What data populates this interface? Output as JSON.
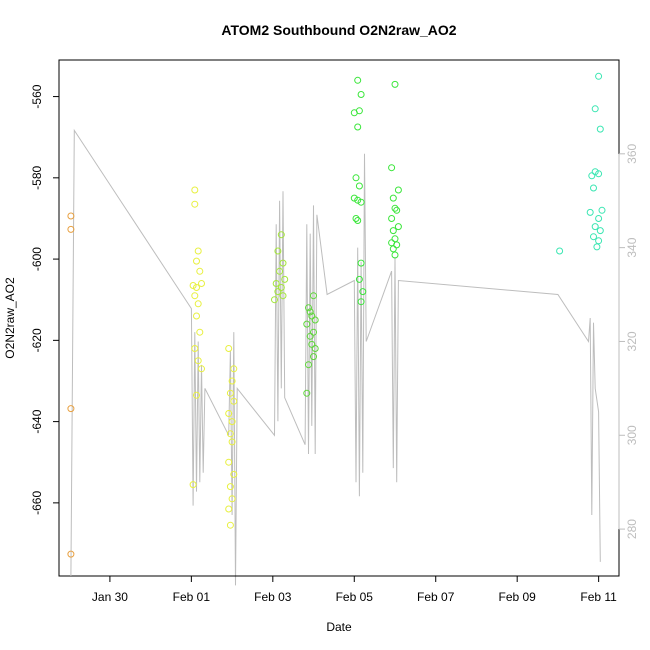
{
  "chart_data": {
    "type": "scatter",
    "title": "ATOM2 Southbound O2N2raw_AO2",
    "xlabel": "Date",
    "ylabel": "O2N2raw_AO2",
    "x_axis": {
      "kind": "date",
      "range": [
        "2016-01-28T18:00",
        "2016-02-11T12:00"
      ],
      "ticks": [
        "2016-01-30",
        "2016-02-01",
        "2016-02-03",
        "2016-02-05",
        "2016-02-07",
        "2016-02-09",
        "2016-02-11"
      ],
      "tick_labels": [
        "Jan 30",
        "Feb 01",
        "Feb 03",
        "Feb 05",
        "Feb 07",
        "Feb 09",
        "Feb 11"
      ]
    },
    "y_axis": {
      "range": [
        -678,
        -551
      ],
      "ticks": [
        -660,
        -640,
        -620,
        -600,
        -580,
        -560
      ],
      "tick_labels": [
        "-660",
        "-640",
        "-620",
        "-600",
        "-580",
        "-560"
      ]
    },
    "y2_axis": {
      "range": [
        270,
        380
      ],
      "ticks": [
        280,
        300,
        320,
        340,
        360
      ],
      "tick_labels": [
        "280",
        "300",
        "320",
        "340",
        "360"
      ],
      "color": "#bdbdbd"
    },
    "grid": false,
    "series": [
      {
        "kind": "points",
        "color": "#e8a040",
        "points": [
          [
            "2016-01-29T01:00",
            -589.4
          ],
          [
            "2016-01-29T01:00",
            -592.7
          ],
          [
            "2016-01-29T01:00",
            -636.8
          ],
          [
            "2016-01-29T01:00",
            -672.6
          ]
        ]
      },
      {
        "kind": "points",
        "color": "#e8f040",
        "points": [
          [
            "2016-02-01T02:00",
            -583.0
          ],
          [
            "2016-02-01T02:00",
            -586.5
          ],
          [
            "2016-02-01T04:00",
            -598.0
          ],
          [
            "2016-02-01T03:00",
            -600.5
          ],
          [
            "2016-02-01T05:00",
            -603.0
          ],
          [
            "2016-02-01T01:00",
            -606.5
          ],
          [
            "2016-02-01T03:00",
            -607.0
          ],
          [
            "2016-02-01T06:00",
            -606.0
          ],
          [
            "2016-02-01T02:00",
            -609.0
          ],
          [
            "2016-02-01T04:00",
            -611.0
          ],
          [
            "2016-02-01T03:00",
            -614.0
          ],
          [
            "2016-02-01T05:00",
            -618.0
          ],
          [
            "2016-02-01T02:00",
            -622.0
          ],
          [
            "2016-02-01T04:00",
            -625.0
          ],
          [
            "2016-02-01T06:00",
            -627.0
          ],
          [
            "2016-02-01T03:00",
            -633.5
          ],
          [
            "2016-02-01T01:00",
            -655.5
          ],
          [
            "2016-02-01T22:00",
            -622.0
          ],
          [
            "2016-02-02T01:00",
            -627.0
          ],
          [
            "2016-02-02T00:00",
            -630.0
          ],
          [
            "2016-02-01T23:00",
            -633.0
          ],
          [
            "2016-02-02T01:00",
            -635.0
          ],
          [
            "2016-02-01T22:00",
            -638.0
          ],
          [
            "2016-02-02T00:00",
            -640.0
          ],
          [
            "2016-02-01T23:00",
            -643.0
          ],
          [
            "2016-02-02T00:00",
            -645.0
          ],
          [
            "2016-02-01T22:00",
            -650.0
          ],
          [
            "2016-02-02T01:00",
            -653.0
          ],
          [
            "2016-02-01T23:00",
            -656.0
          ],
          [
            "2016-02-02T00:00",
            -659.0
          ],
          [
            "2016-02-01T22:00",
            -661.5
          ],
          [
            "2016-02-01T23:00",
            -665.5
          ]
        ]
      },
      {
        "kind": "points",
        "color": "#a4e63a",
        "points": [
          [
            "2016-02-03T05:00",
            -594.0
          ],
          [
            "2016-02-03T03:00",
            -598.0
          ],
          [
            "2016-02-03T06:00",
            -601.0
          ],
          [
            "2016-02-03T04:00",
            -603.0
          ],
          [
            "2016-02-03T07:00",
            -605.0
          ],
          [
            "2016-02-03T02:00",
            -606.0
          ],
          [
            "2016-02-03T05:00",
            -607.0
          ],
          [
            "2016-02-03T03:00",
            -608.0
          ],
          [
            "2016-02-03T06:00",
            -609.0
          ],
          [
            "2016-02-03T01:00",
            -610.0
          ]
        ]
      },
      {
        "kind": "points",
        "color": "#5ed63a",
        "points": [
          [
            "2016-02-03T21:00",
            -612.0
          ],
          [
            "2016-02-04T00:00",
            -609.0
          ],
          [
            "2016-02-03T22:00",
            -613.0
          ],
          [
            "2016-02-03T23:00",
            -614.0
          ],
          [
            "2016-02-04T01:00",
            -615.0
          ],
          [
            "2016-02-03T20:00",
            -616.0
          ],
          [
            "2016-02-04T00:00",
            -618.0
          ],
          [
            "2016-02-03T22:00",
            -619.0
          ],
          [
            "2016-02-03T23:00",
            -621.0
          ],
          [
            "2016-02-04T01:00",
            -622.0
          ],
          [
            "2016-02-04T00:00",
            -624.0
          ],
          [
            "2016-02-03T21:00",
            -626.0
          ],
          [
            "2016-02-03T20:00",
            -633.0
          ]
        ]
      },
      {
        "kind": "points",
        "color": "#3ae63a",
        "points": [
          [
            "2016-02-05T02:00",
            -556.0
          ],
          [
            "2016-02-05T04:00",
            -559.5
          ],
          [
            "2016-02-05T00:00",
            -564.0
          ],
          [
            "2016-02-05T03:00",
            -563.5
          ],
          [
            "2016-02-05T02:00",
            -567.5
          ],
          [
            "2016-02-05T01:00",
            -580.0
          ],
          [
            "2016-02-05T03:00",
            -582.0
          ],
          [
            "2016-02-05T00:00",
            -585.0
          ],
          [
            "2016-02-05T02:00",
            -585.5
          ],
          [
            "2016-02-05T04:00",
            -586.0
          ],
          [
            "2016-02-05T01:00",
            -590.0
          ],
          [
            "2016-02-05T02:00",
            -590.5
          ],
          [
            "2016-02-05T04:00",
            -601.0
          ],
          [
            "2016-02-05T03:00",
            -605.0
          ],
          [
            "2016-02-05T05:00",
            -608.0
          ],
          [
            "2016-02-05T04:00",
            -610.5
          ],
          [
            "2016-02-06T00:00",
            -557.0
          ],
          [
            "2016-02-05T22:00",
            -577.5
          ],
          [
            "2016-02-06T02:00",
            -583.0
          ],
          [
            "2016-02-05T23:00",
            -585.0
          ],
          [
            "2016-02-06T00:00",
            -587.5
          ],
          [
            "2016-02-06T01:00",
            -588.0
          ],
          [
            "2016-02-05T22:00",
            -590.0
          ],
          [
            "2016-02-06T02:00",
            -592.0
          ],
          [
            "2016-02-05T23:00",
            -593.0
          ],
          [
            "2016-02-06T00:00",
            -595.0
          ],
          [
            "2016-02-06T01:00",
            -596.5
          ],
          [
            "2016-02-05T22:00",
            -596.0
          ],
          [
            "2016-02-05T23:00",
            -597.5
          ],
          [
            "2016-02-06T00:00",
            -599.0
          ]
        ]
      },
      {
        "kind": "points",
        "color": "#3ae6b2",
        "points": [
          [
            "2016-02-10T01:00",
            -598.0
          ],
          [
            "2016-02-10T22:00",
            -563.0
          ],
          [
            "2016-02-11T00:00",
            -555.0
          ],
          [
            "2016-02-11T01:00",
            -568.0
          ],
          [
            "2016-02-10T20:00",
            -579.5
          ],
          [
            "2016-02-11T00:00",
            -579.0
          ],
          [
            "2016-02-10T22:00",
            -578.5
          ],
          [
            "2016-02-10T21:00",
            -582.5
          ],
          [
            "2016-02-11T02:00",
            -588.0
          ],
          [
            "2016-02-10T19:00",
            -588.5
          ],
          [
            "2016-02-11T00:00",
            -590.0
          ],
          [
            "2016-02-10T22:00",
            -592.0
          ],
          [
            "2016-02-11T01:00",
            -593.0
          ],
          [
            "2016-02-10T21:00",
            -594.5
          ],
          [
            "2016-02-11T00:00",
            -595.5
          ],
          [
            "2016-02-10T23:00",
            -597.0
          ]
        ]
      },
      {
        "kind": "line",
        "color": "#bdbdbd",
        "axis": "y2",
        "points": [
          [
            "2016-01-29T01:00",
            270.0
          ],
          [
            "2016-01-29T03:00",
            365.0
          ],
          [
            "2016-02-01T00:00",
            327.0
          ],
          [
            "2016-02-01T01:00",
            285.0
          ],
          [
            "2016-02-01T02:00",
            322.0
          ],
          [
            "2016-02-01T03:00",
            288.0
          ],
          [
            "2016-02-01T04:00",
            320.0
          ],
          [
            "2016-02-01T05:00",
            290.0
          ],
          [
            "2016-02-01T06:00",
            315.0
          ],
          [
            "2016-02-01T07:00",
            292.0
          ],
          [
            "2016-02-01T08:00",
            310.0
          ],
          [
            "2016-02-01T22:00",
            300.0
          ],
          [
            "2016-02-01T23:00",
            318.0
          ],
          [
            "2016-02-02T00:00",
            283.0
          ],
          [
            "2016-02-02T01:00",
            322.0
          ],
          [
            "2016-02-02T02:00",
            268.0
          ],
          [
            "2016-02-02T03:00",
            310.0
          ],
          [
            "2016-02-03T01:00",
            300.0
          ],
          [
            "2016-02-03T02:00",
            345.0
          ],
          [
            "2016-02-03T03:00",
            303.0
          ],
          [
            "2016-02-03T04:00",
            350.0
          ],
          [
            "2016-02-03T05:00",
            310.0
          ],
          [
            "2016-02-03T06:00",
            352.0
          ],
          [
            "2016-02-03T07:00",
            308.0
          ],
          [
            "2016-02-03T19:00",
            298.0
          ],
          [
            "2016-02-03T20:00",
            345.0
          ],
          [
            "2016-02-03T21:00",
            296.0
          ],
          [
            "2016-02-03T22:00",
            343.0
          ],
          [
            "2016-02-03T23:00",
            302.0
          ],
          [
            "2016-02-04T00:00",
            349.0
          ],
          [
            "2016-02-04T01:00",
            296.0
          ],
          [
            "2016-02-04T02:00",
            347.0
          ],
          [
            "2016-02-04T08:00",
            330.0
          ],
          [
            "2016-02-05T00:00",
            333.0
          ],
          [
            "2016-02-05T01:00",
            290.0
          ],
          [
            "2016-02-05T02:00",
            340.0
          ],
          [
            "2016-02-05T03:00",
            287.0
          ],
          [
            "2016-02-05T04:00",
            337.0
          ],
          [
            "2016-02-05T05:00",
            292.0
          ],
          [
            "2016-02-05T06:00",
            360.0
          ],
          [
            "2016-02-05T07:00",
            320.0
          ],
          [
            "2016-02-05T22:00",
            335.0
          ],
          [
            "2016-02-05T23:00",
            293.0
          ],
          [
            "2016-02-06T00:00",
            338.0
          ],
          [
            "2016-02-06T01:00",
            290.0
          ],
          [
            "2016-02-06T02:00",
            333.0
          ],
          [
            "2016-02-10T00:00",
            330.0
          ],
          [
            "2016-02-10T18:00",
            320.0
          ],
          [
            "2016-02-10T19:00",
            325.0
          ],
          [
            "2016-02-10T20:00",
            283.0
          ],
          [
            "2016-02-10T21:00",
            324.0
          ],
          [
            "2016-02-10T22:00",
            310.0
          ],
          [
            "2016-02-11T00:00",
            305.0
          ],
          [
            "2016-02-11T01:00",
            273.0
          ]
        ]
      }
    ]
  }
}
